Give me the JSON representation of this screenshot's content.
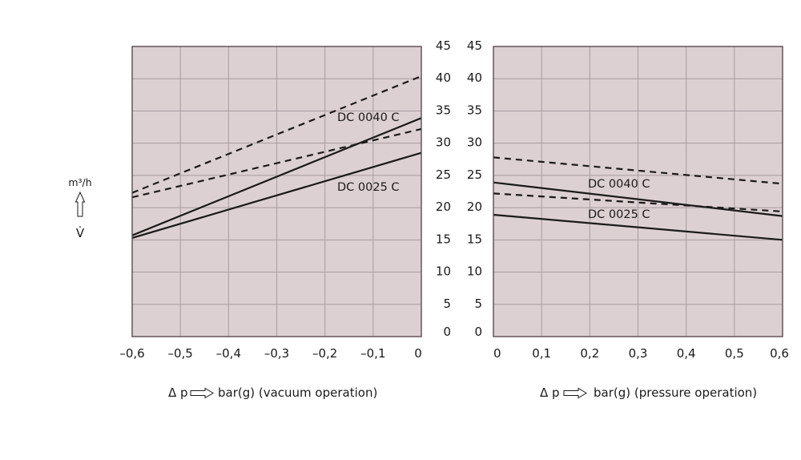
{
  "colors": {
    "plot_background": "#ddd0d3",
    "grid": "#a89ca0",
    "frame": "#5a4a50",
    "line": "#1a1a1a"
  },
  "y_unit_label": "m³/h",
  "y_symbol": "V̇",
  "chart_data": [
    {
      "type": "line",
      "title": "",
      "xlabel_symbol": "Δ p",
      "xlabel_text": "bar(g) (vacuum operation)",
      "xlim": [
        -0.6,
        0
      ],
      "x_ticks": [
        "–0,6",
        "–0,5",
        "–0,4",
        "–0,3",
        "–0,2",
        "–0,1",
        "0"
      ],
      "ylim": [
        0,
        45
      ],
      "y_ticks": [
        "0",
        "5",
        "10",
        "15",
        "20",
        "25",
        "30",
        "35",
        "40",
        "45"
      ],
      "y_axis_side": "right",
      "grid": true,
      "curve_labels": [
        "DC 0040 C",
        "DC 0025 C"
      ],
      "series": [
        {
          "curve": "DC 0040 C",
          "style": "dashed",
          "x": [
            -0.6,
            0
          ],
          "y": [
            22.3,
            40.4
          ]
        },
        {
          "curve": "DC 0040 C",
          "style": "solid",
          "x": [
            -0.6,
            0
          ],
          "y": [
            15.7,
            33.9
          ]
        },
        {
          "curve": "DC 0025 C",
          "style": "dashed",
          "x": [
            -0.6,
            0
          ],
          "y": [
            21.6,
            32.2
          ]
        },
        {
          "curve": "DC 0025 C",
          "style": "solid",
          "x": [
            -0.6,
            0
          ],
          "y": [
            15.3,
            28.5
          ]
        }
      ]
    },
    {
      "type": "line",
      "title": "",
      "xlabel_symbol": "Δ p",
      "xlabel_text": "bar(g) (pressure operation)",
      "xlim": [
        0,
        0.6
      ],
      "x_ticks": [
        "0",
        "0,1",
        "0,2",
        "0,3",
        "0,4",
        "0,5",
        "0,6"
      ],
      "ylim": [
        0,
        45
      ],
      "y_ticks": [
        "0",
        "5",
        "10",
        "15",
        "20",
        "25",
        "30",
        "35",
        "40",
        "45"
      ],
      "y_axis_side": "left",
      "grid": true,
      "curve_labels": [
        "DC 0040 C",
        "DC 0025 C"
      ],
      "series": [
        {
          "curve": "DC 0040 C",
          "style": "dashed",
          "x": [
            0,
            0.6
          ],
          "y": [
            27.8,
            23.7
          ]
        },
        {
          "curve": "DC 0040 C",
          "style": "solid",
          "x": [
            0,
            0.6
          ],
          "y": [
            23.9,
            18.7
          ]
        },
        {
          "curve": "DC 0025 C",
          "style": "dashed",
          "x": [
            0,
            0.6
          ],
          "y": [
            22.2,
            19.4
          ]
        },
        {
          "curve": "DC 0025 C",
          "style": "solid",
          "x": [
            0,
            0.6
          ],
          "y": [
            18.9,
            15.0
          ]
        }
      ]
    }
  ]
}
